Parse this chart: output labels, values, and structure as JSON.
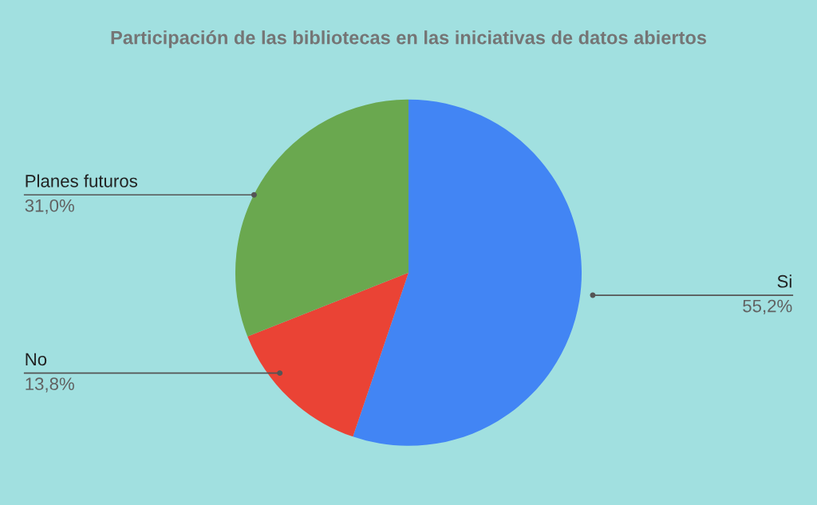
{
  "chart_data": {
    "type": "pie",
    "title": "Participación de las bibliotecas en las iniciativas de datos abiertos",
    "categories": [
      "Si",
      "No",
      "Planes futuros"
    ],
    "values": [
      55.2,
      13.8,
      31.0
    ],
    "value_labels": [
      "55,2%",
      "13,8%",
      "31,0%"
    ],
    "colors": [
      "#4285f4",
      "#ea4335",
      "#6aa84f"
    ],
    "legend": false
  }
}
